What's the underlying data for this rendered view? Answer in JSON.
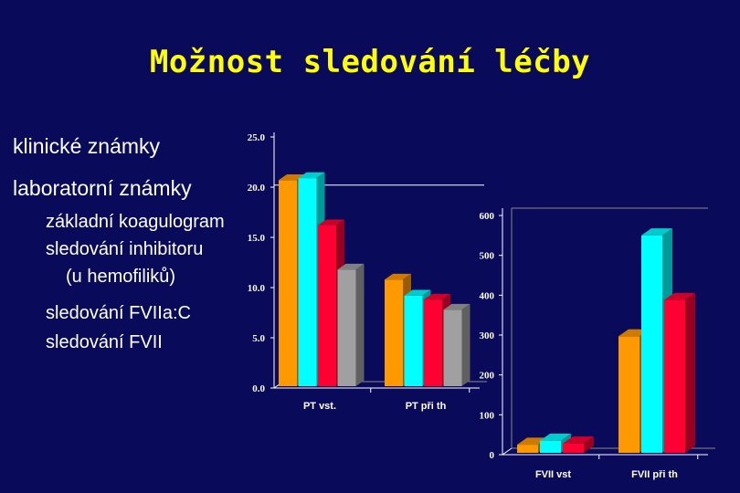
{
  "slide": {
    "title": "Možnost sledování léčby",
    "bullets": [
      {
        "text": "klinické známky",
        "level": 1
      },
      {
        "text": "laboratorní známky",
        "level": 1
      },
      {
        "text": "základní koagulogram",
        "level": 2
      },
      {
        "text": "sledování inhibitoru",
        "level": 2
      },
      {
        "text": "(u hemofiliků)",
        "level": 3
      },
      {
        "text": "sledování FVIIa:C",
        "level": 2
      },
      {
        "text": "sledování FVII",
        "level": 2
      }
    ]
  },
  "colors": {
    "background": "#0a0a5a",
    "title": "#ffff00",
    "series": [
      "#ff9900",
      "#00ffff",
      "#ff0033",
      "#a0a0a0"
    ]
  },
  "chart_data": [
    {
      "type": "bar",
      "categories": [
        "PT vst.",
        "PT při th"
      ],
      "y_ticks": [
        "0.0",
        "5.0",
        "10.0",
        "15.0",
        "20.0",
        "25.0"
      ],
      "ylim": [
        0,
        25
      ],
      "series": [
        {
          "values": [
            20.7,
            10.8
          ]
        },
        {
          "values": [
            20.9,
            9.2
          ]
        },
        {
          "values": [
            16.2,
            8.8
          ]
        },
        {
          "values": [
            11.8,
            7.8
          ]
        }
      ],
      "reference_line": 20.2
    },
    {
      "type": "bar",
      "categories": [
        "FVII vst",
        "FVII při th"
      ],
      "y_ticks": [
        "0",
        "100",
        "200",
        "300",
        "400",
        "500",
        "600"
      ],
      "ylim": [
        0,
        600
      ],
      "series": [
        {
          "values": [
            25,
            297
          ]
        },
        {
          "values": [
            35,
            550
          ]
        },
        {
          "values": [
            28,
            388
          ]
        }
      ]
    }
  ]
}
